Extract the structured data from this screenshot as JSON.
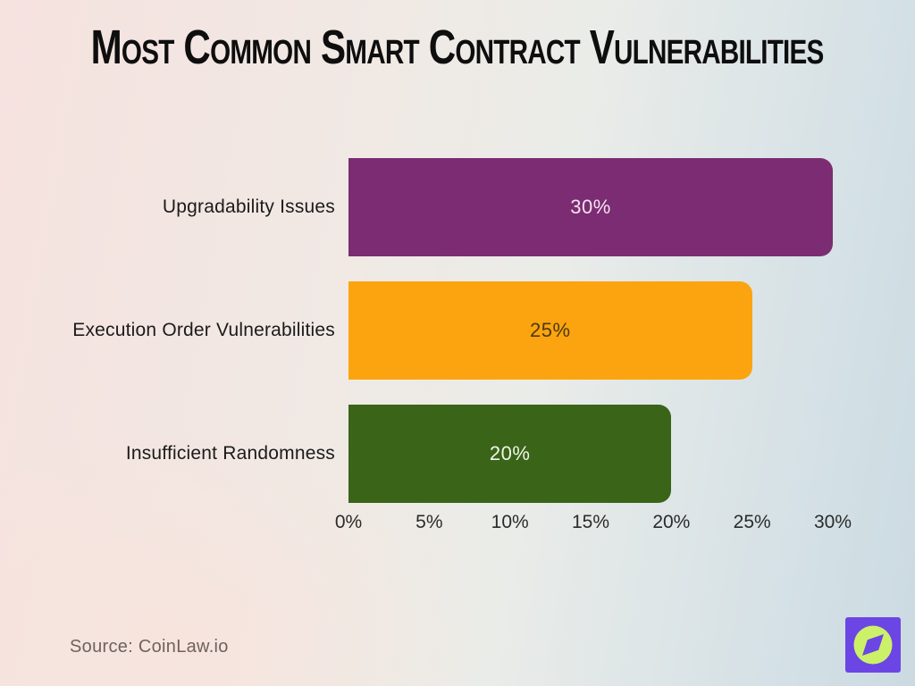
{
  "title": "Most Common Smart Contract Vulnerabilities",
  "source": "Source: CoinLaw.io",
  "logo": {
    "icon": "compass-leaf-icon",
    "bg_color": "#6B46E5",
    "circle_color": "#CCF169"
  },
  "colors": {
    "background_left": "#f6e2df",
    "background_right": "#cbdae1",
    "title_text": "#0e0e0e",
    "axis_text": "#2b2b2b",
    "category_text": "#1b1b1b",
    "source_text": "#6e625f"
  },
  "chart_data": {
    "type": "bar",
    "orientation": "horizontal",
    "title": "Most Common Smart Contract Vulnerabilities",
    "xlabel": "",
    "ylabel": "",
    "xlim": [
      0,
      30
    ],
    "grid": false,
    "legend": "none",
    "categories": [
      "Upgradability Issues",
      "Execution Order Vulnerabilities",
      "Insufficient Randomness"
    ],
    "values": [
      30,
      25,
      20
    ],
    "value_labels": [
      "30%",
      "25%",
      "20%"
    ],
    "bar_colors": [
      "#7B2C72",
      "#FCA40F",
      "#3A6418"
    ],
    "value_label_colors": [
      "#F5E2F1",
      "#4A3A10",
      "#F0F5EA"
    ],
    "x_ticks": [
      "0%",
      "5%",
      "10%",
      "15%",
      "20%",
      "25%",
      "30%"
    ]
  }
}
